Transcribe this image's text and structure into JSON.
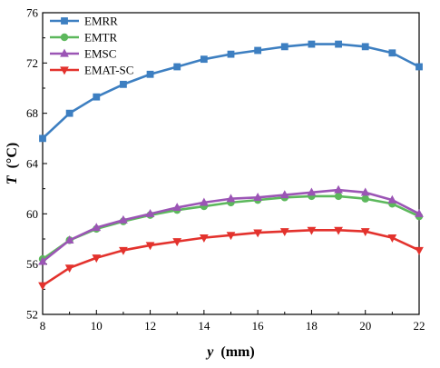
{
  "chart_data": {
    "type": "line",
    "xlabel": {
      "var": "y",
      "unit": "(mm)"
    },
    "ylabel": {
      "var": "T",
      "unit": "(°C)"
    },
    "xlim": [
      8,
      22
    ],
    "ylim": [
      52,
      76
    ],
    "xticks": [
      8,
      10,
      12,
      14,
      16,
      18,
      20,
      22
    ],
    "yticks": [
      52,
      56,
      60,
      64,
      68,
      72,
      76
    ],
    "grid": false,
    "legend_position": "top-left",
    "x": [
      8,
      9,
      10,
      11,
      12,
      13,
      14,
      15,
      16,
      17,
      18,
      19,
      20,
      21,
      22
    ],
    "series": [
      {
        "name": "EMRR",
        "color": "#3d7fc1",
        "marker": "square",
        "values": [
          66.0,
          68.0,
          69.3,
          70.3,
          71.1,
          71.7,
          72.3,
          72.7,
          73.0,
          73.3,
          73.5,
          73.5,
          73.3,
          72.8,
          71.7
        ]
      },
      {
        "name": "EMTR",
        "color": "#5cb85c",
        "marker": "circle",
        "values": [
          56.4,
          57.9,
          58.8,
          59.4,
          59.9,
          60.3,
          60.6,
          60.9,
          61.1,
          61.3,
          61.4,
          61.4,
          61.2,
          60.8,
          59.8
        ]
      },
      {
        "name": "EMSC",
        "color": "#9b55b5",
        "marker": "triangle-up",
        "values": [
          56.2,
          57.9,
          58.9,
          59.5,
          60.0,
          60.5,
          60.9,
          61.2,
          61.3,
          61.5,
          61.7,
          61.9,
          61.7,
          61.1,
          60.0
        ]
      },
      {
        "name": "EMAT-SC",
        "color": "#e3322d",
        "marker": "triangle-down",
        "values": [
          54.3,
          55.7,
          56.5,
          57.1,
          57.5,
          57.8,
          58.1,
          58.3,
          58.5,
          58.6,
          58.7,
          58.7,
          58.6,
          58.1,
          57.1
        ]
      }
    ]
  }
}
